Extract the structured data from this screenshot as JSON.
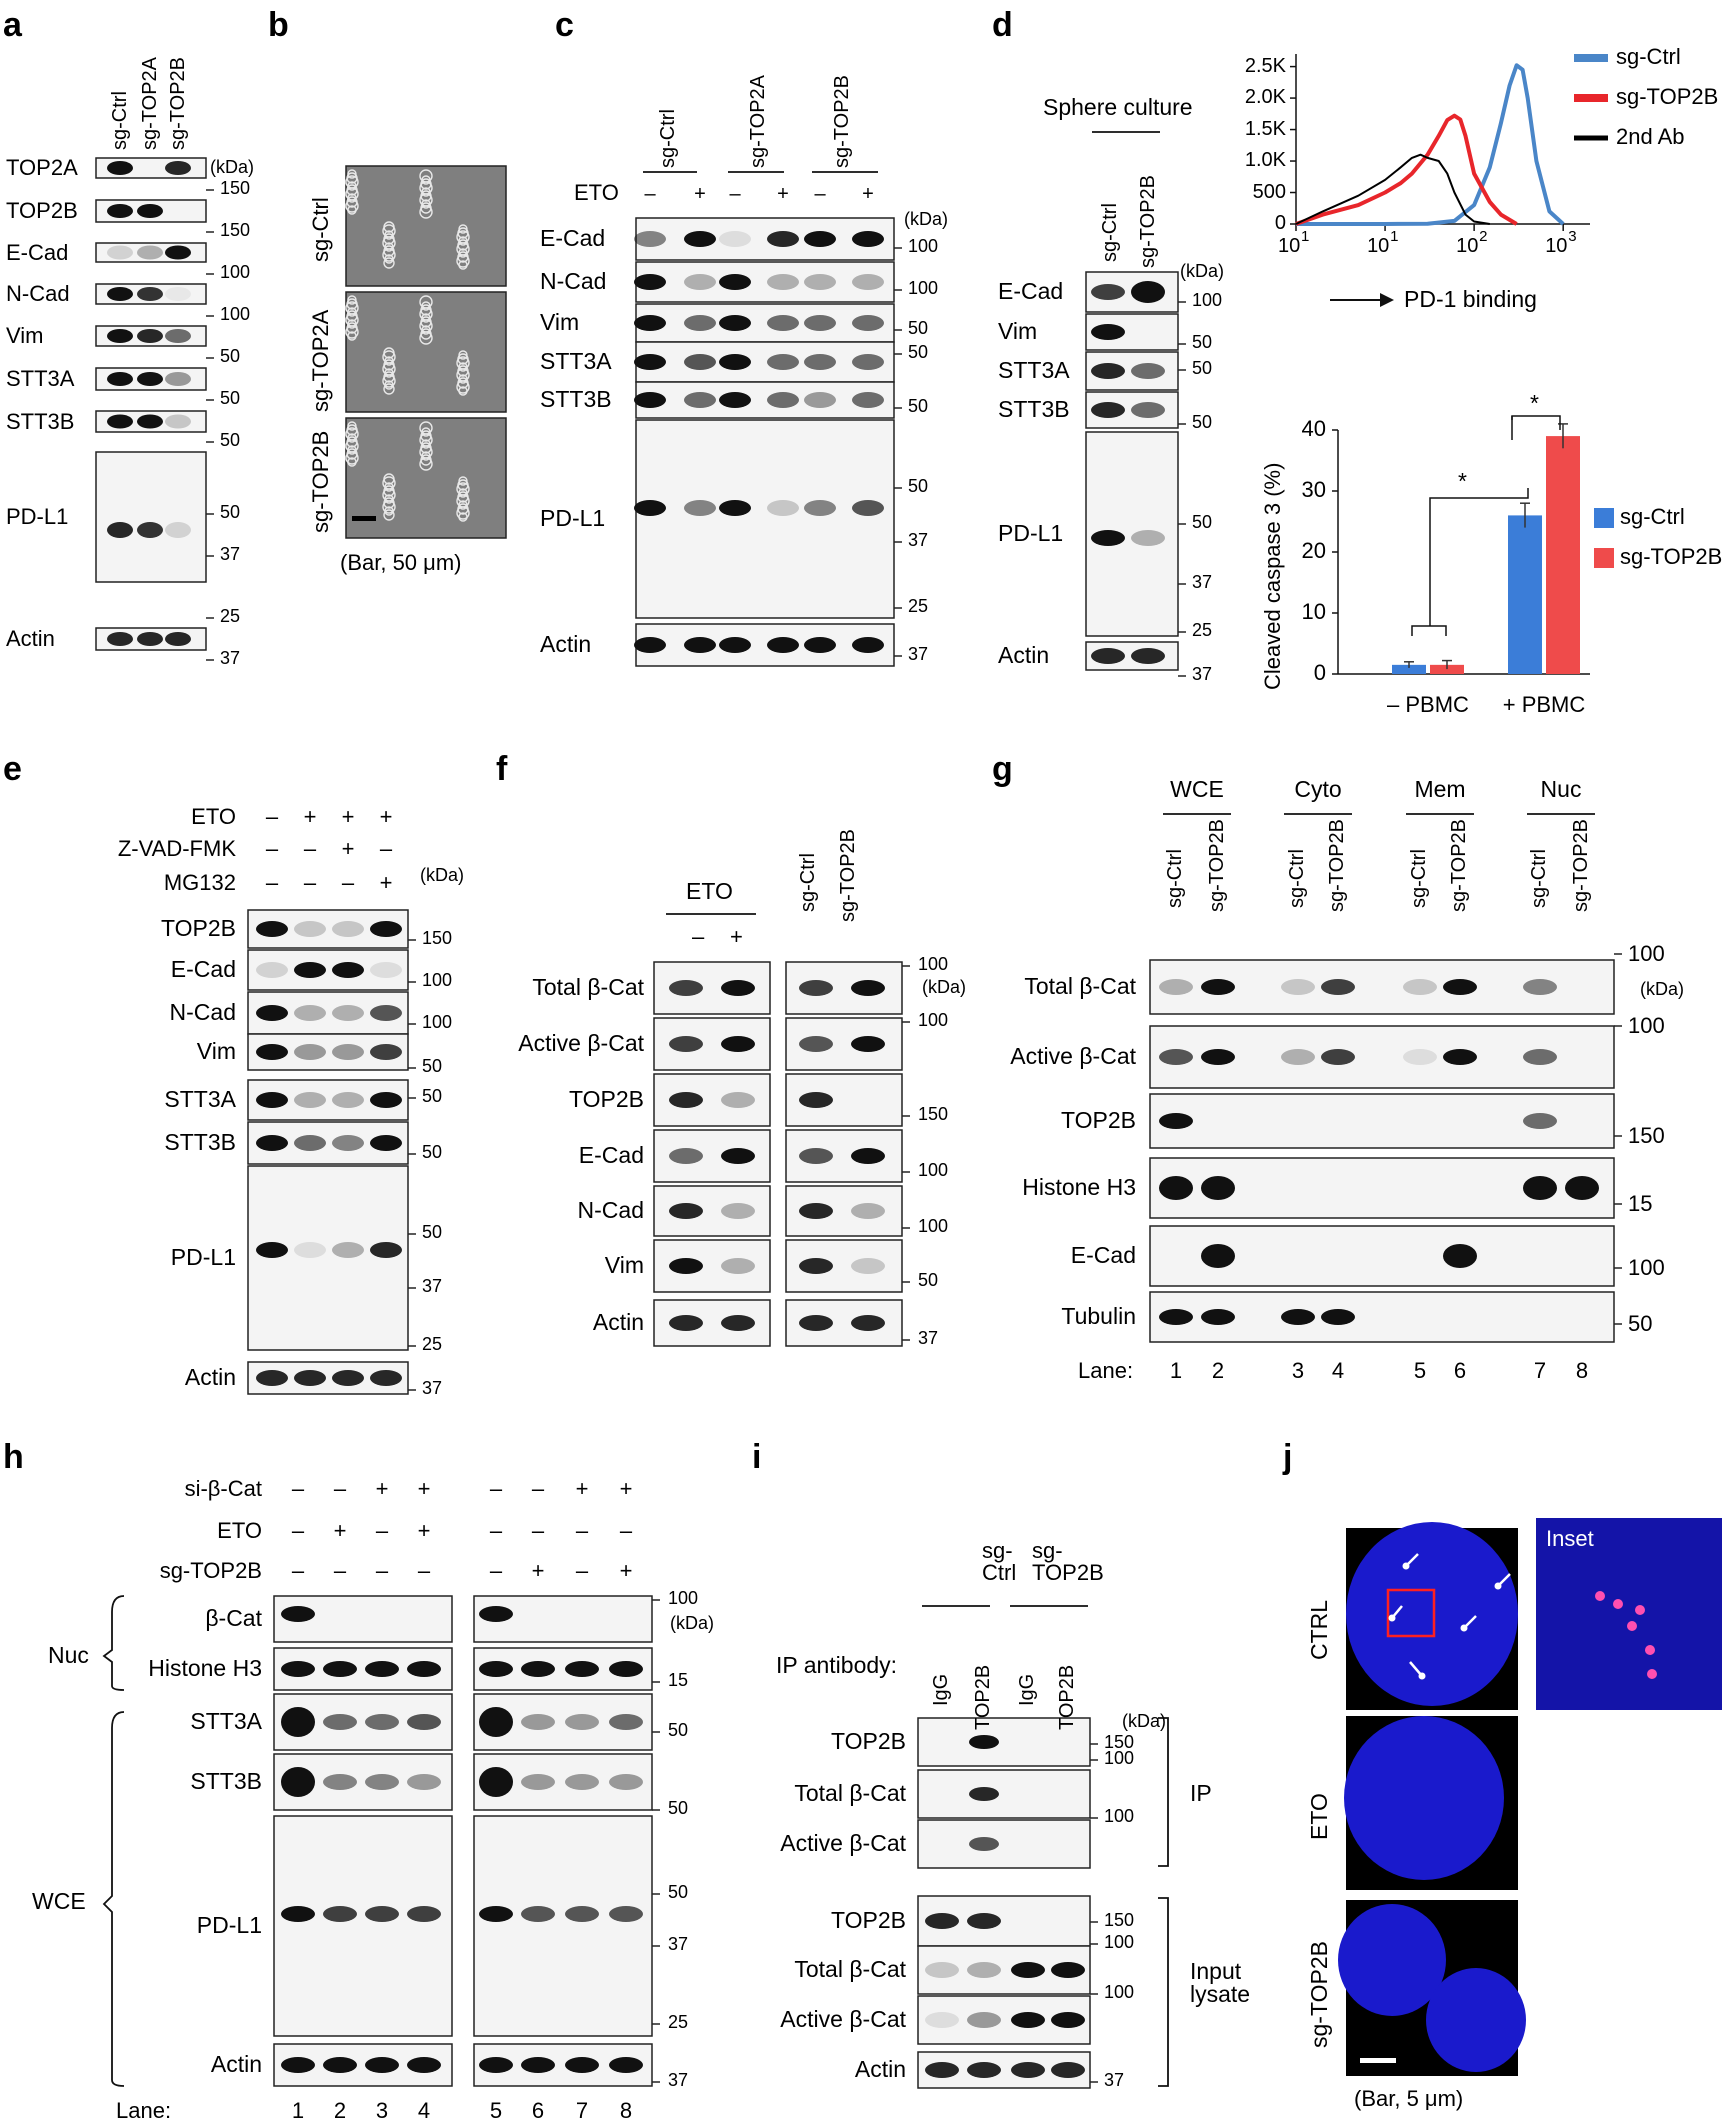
{
  "panels": [
    "a",
    "b",
    "c",
    "d",
    "e",
    "f",
    "g",
    "h",
    "i",
    "j"
  ],
  "kda": "(kDa)",
  "a": {
    "columns": [
      "sg-Ctrl",
      "sg-TOP2A",
      "sg-TOP2B"
    ],
    "rows": [
      "TOP2A",
      "TOP2B",
      "E-Cad",
      "N-Cad",
      "Vim",
      "STT3A",
      "STT3B",
      "PD-L1",
      "Actin"
    ],
    "markers": [
      "150",
      "150",
      "100",
      "100",
      "50",
      "50",
      "50",
      "50",
      "37",
      "25",
      "37"
    ]
  },
  "b": {
    "rows": [
      "sg-Ctrl",
      "sg-TOP2A",
      "sg-TOP2B"
    ],
    "scale": "(Bar, 50 μm)"
  },
  "c": {
    "groups": [
      "sg-Ctrl",
      "sg-TOP2A",
      "sg-TOP2B"
    ],
    "treatment": "ETO",
    "signs": [
      "–",
      "+",
      "–",
      "+",
      "–",
      "+"
    ],
    "rows": [
      "E-Cad",
      "N-Cad",
      "Vim",
      "STT3A",
      "STT3B",
      "PD-L1",
      "Actin"
    ],
    "markers": [
      "100",
      "100",
      "50",
      "50",
      "50",
      "50",
      "37",
      "25",
      "37"
    ]
  },
  "d": {
    "culture": "Sphere culture",
    "columns": [
      "sg-Ctrl",
      "sg-TOP2B"
    ],
    "rows": [
      "E-Cad",
      "Vim",
      "STT3A",
      "STT3B",
      "PD-L1",
      "Actin"
    ],
    "markers": [
      "100",
      "50",
      "50",
      "50",
      "50",
      "37",
      "25",
      "37"
    ],
    "flow": {
      "yticks": [
        "2.5K",
        "2.0K",
        "1.5K",
        "1.0K",
        "500",
        "0"
      ],
      "xticks": [
        "1",
        "1",
        "2",
        "3"
      ],
      "xbase": "10",
      "xlabel": "PD-1 binding",
      "legend": [
        "sg-Ctrl",
        "sg-TOP2B",
        "2nd Ab"
      ],
      "colors": [
        "#4a86c8",
        "#e8262b",
        "#000000"
      ]
    },
    "bars": {
      "ylabel": "Cleaved caspase 3 (%)",
      "yticks": [
        "40",
        "30",
        "20",
        "10",
        "0"
      ],
      "xlabels": [
        "– PBMC",
        "+ PBMC"
      ],
      "legend": [
        "sg-Ctrl",
        "sg-TOP2B"
      ],
      "colors": [
        "#3b7dd8",
        "#ef4b4b"
      ],
      "star": "*"
    }
  },
  "chart_data": [
    {
      "type": "line",
      "x_scale": "log",
      "xlim": [
        1,
        2000
      ],
      "ylim": [
        0,
        2700
      ],
      "series": [
        {
          "name": "sg-Ctrl",
          "x": [
            1,
            10,
            30,
            60,
            100,
            150,
            200,
            250,
            300,
            350,
            400,
            500,
            700,
            1000
          ],
          "y": [
            0,
            0,
            5,
            50,
            300,
            900,
            1600,
            2200,
            2520,
            2450,
            2000,
            1000,
            200,
            0
          ]
        },
        {
          "name": "sg-TOP2B",
          "x": [
            1,
            2,
            5,
            10,
            15,
            20,
            30,
            40,
            50,
            60,
            70,
            80,
            100,
            150,
            200,
            300
          ],
          "y": [
            0,
            150,
            300,
            500,
            650,
            800,
            1100,
            1400,
            1650,
            1720,
            1660,
            1400,
            800,
            350,
            150,
            0
          ]
        },
        {
          "name": "2nd Ab",
          "x": [
            1,
            2,
            5,
            10,
            15,
            20,
            25,
            30,
            40,
            50,
            60,
            80,
            100,
            150
          ],
          "y": [
            0,
            200,
            450,
            700,
            900,
            1050,
            1100,
            1050,
            1000,
            800,
            500,
            150,
            40,
            0
          ]
        }
      ]
    },
    {
      "type": "bar",
      "categories": [
        "– PBMC",
        "+ PBMC"
      ],
      "series": [
        {
          "name": "sg-Ctrl",
          "values": [
            1.5,
            26
          ],
          "errors": [
            0.5,
            2
          ]
        },
        {
          "name": "sg-TOP2B",
          "values": [
            1.5,
            39
          ],
          "errors": [
            0.7,
            2
          ]
        }
      ],
      "ylim": [
        0,
        40
      ],
      "ylabel": "Cleaved caspase 3 (%)"
    }
  ],
  "e": {
    "treatments": [
      "ETO",
      "Z-VAD-FMK",
      "MG132"
    ],
    "signs": [
      [
        "–",
        "+",
        "+",
        "+"
      ],
      [
        "–",
        "–",
        "+",
        "–"
      ],
      [
        "–",
        "–",
        "–",
        "+"
      ]
    ],
    "rows": [
      "TOP2B",
      "E-Cad",
      "N-Cad",
      "Vim",
      "STT3A",
      "STT3B",
      "PD-L1",
      "Actin"
    ],
    "markers": [
      "150",
      "100",
      "100",
      "50",
      "50",
      "50",
      "50",
      "37",
      "25",
      "37"
    ]
  },
  "f": {
    "treatment": "ETO",
    "signs": [
      "–",
      "+"
    ],
    "columns": [
      "sg-Ctrl",
      "sg-TOP2B"
    ],
    "rows": [
      "Total β-Cat",
      "Active β-Cat",
      "TOP2B",
      "E-Cad",
      "N-Cad",
      "Vim",
      "Actin"
    ],
    "markers": [
      "100",
      "100",
      "150",
      "100",
      "100",
      "50",
      "37"
    ]
  },
  "g": {
    "fractions": [
      "WCE",
      "Cyto",
      "Mem",
      "Nuc"
    ],
    "columns": [
      "sg-Ctrl",
      "sg-TOP2B"
    ],
    "rows": [
      "Total β-Cat",
      "Active β-Cat",
      "TOP2B",
      "Histone H3",
      "E-Cad",
      "Tubulin"
    ],
    "markers": [
      "100",
      "100",
      "150",
      "15",
      "100",
      "50"
    ],
    "lane_label": "Lane:",
    "lanes": [
      "1",
      "2",
      "3",
      "4",
      "5",
      "6",
      "7",
      "8"
    ]
  },
  "h": {
    "treatments": [
      "si-β-Cat",
      "ETO",
      "sg-TOP2B"
    ],
    "signs_left": [
      [
        "–",
        "–",
        "+",
        "+"
      ],
      [
        "–",
        "+",
        "–",
        "+"
      ],
      [
        "–",
        "–",
        "–",
        "–"
      ]
    ],
    "signs_right": [
      [
        "–",
        "–",
        "+",
        "+"
      ],
      [
        "–",
        "–",
        "–",
        "–"
      ],
      [
        "–",
        "+",
        "–",
        "+"
      ]
    ],
    "groups": [
      "Nuc",
      "WCE"
    ],
    "rows": [
      "β-Cat",
      "Histone H3",
      "STT3A",
      "STT3B",
      "PD-L1",
      "Actin"
    ],
    "markers": [
      "100",
      "15",
      "50",
      "50",
      "50",
      "37",
      "25",
      "37"
    ],
    "lane_label": "Lane:",
    "lanes": [
      "1",
      "2",
      "3",
      "4",
      "5",
      "6",
      "7",
      "8"
    ]
  },
  "i": {
    "groups": [
      "sg-\nCtrl",
      "sg-\nTOP2B"
    ],
    "ip_antibody": "IP antibody:",
    "columns": [
      "IgG",
      "TOP2B",
      "IgG",
      "TOP2B"
    ],
    "rows_ip": [
      "TOP2B",
      "Total β-Cat",
      "Active β-Cat"
    ],
    "rows_input": [
      "TOP2B",
      "Total β-Cat",
      "Active β-Cat",
      "Actin"
    ],
    "markers": [
      "150",
      "100",
      "100",
      "150",
      "100",
      "100",
      "37"
    ],
    "section_ip": "IP",
    "section_input": "Input\nlysate"
  },
  "j": {
    "rows": [
      "CTRL",
      "ETO",
      "sg-TOP2B"
    ],
    "inset": "Inset",
    "scale": "(Bar, 5 μm)"
  }
}
